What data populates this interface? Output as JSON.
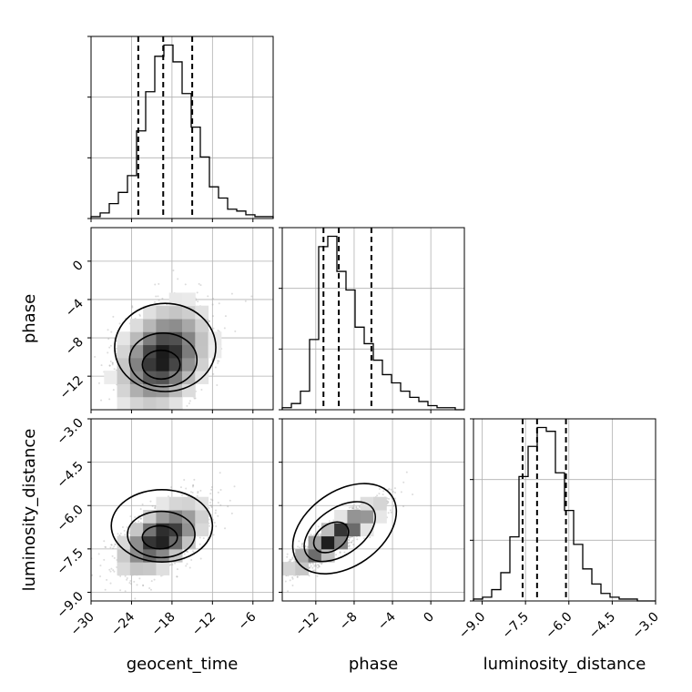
{
  "chart_data": {
    "type": "corner",
    "parameters": [
      "geocent_time",
      "phase",
      "luminosity_distance"
    ],
    "grid": true,
    "histogram_dashed_lines": {
      "geocent_time": [
        -23.0,
        -19.3,
        -15.0
      ],
      "phase": [
        -11.2,
        -9.6,
        -6.2
      ],
      "luminosity_distance": [
        -7.6,
        -7.1,
        -6.1
      ]
    },
    "axes": {
      "geocent_time": {
        "range": [
          -30,
          -3
        ],
        "ticks": [
          -30,
          -24,
          -18,
          -12,
          -6
        ],
        "tick_labels": [
          "−30",
          "−24",
          "−18",
          "−12",
          "−6"
        ]
      },
      "phase": {
        "range": [
          -15.5,
          3.5
        ],
        "ticks": [
          -12,
          -8,
          -4,
          0
        ],
        "tick_labels": [
          "−12",
          "−8",
          "−4",
          "0"
        ]
      },
      "luminosity_distance": {
        "range": [
          -9.3,
          -3.0
        ],
        "ticks": [
          -9.0,
          -7.5,
          -6.0,
          -4.5,
          -3.0
        ],
        "tick_labels": [
          "−9.0",
          "−7.5",
          "−6.0",
          "−4.5",
          "−3.0"
        ]
      }
    },
    "histograms": {
      "geocent_time": {
        "edges": [
          -30,
          -28.65,
          -27.3,
          -25.95,
          -24.6,
          -23.25,
          -21.9,
          -20.55,
          -19.2,
          -17.85,
          -16.5,
          -15.15,
          -13.8,
          -12.45,
          -11.1,
          -9.75,
          -8.4,
          -7.05,
          -5.7,
          -4.35,
          -3.0
        ],
        "counts": [
          0.01,
          0.03,
          0.08,
          0.14,
          0.23,
          0.47,
          0.68,
          0.87,
          0.93,
          0.84,
          0.67,
          0.49,
          0.33,
          0.17,
          0.11,
          0.05,
          0.04,
          0.02,
          0.01,
          0.01
        ]
      },
      "phase": {
        "edges": [
          -15.5,
          -14.55,
          -13.6,
          -12.65,
          -11.7,
          -10.75,
          -9.8,
          -8.85,
          -7.9,
          -6.95,
          -6.0,
          -5.05,
          -4.1,
          -3.15,
          -2.2,
          -1.25,
          -0.3,
          0.65,
          1.6,
          2.55,
          3.5
        ],
        "counts": [
          0.01,
          0.03,
          0.09,
          0.34,
          0.79,
          0.84,
          0.67,
          0.58,
          0.4,
          0.32,
          0.24,
          0.17,
          0.13,
          0.09,
          0.06,
          0.04,
          0.02,
          0.01,
          0.01,
          0.0
        ]
      },
      "luminosity_distance": {
        "edges": [
          -9.3,
          -8.985,
          -8.67,
          -8.355,
          -8.04,
          -7.725,
          -7.41,
          -7.095,
          -6.78,
          -6.465,
          -6.15,
          -5.835,
          -5.52,
          -5.205,
          -4.89,
          -4.575,
          -4.26,
          -3.945,
          -3.63,
          -3.315,
          -3.0
        ],
        "counts": [
          0.01,
          0.02,
          0.06,
          0.15,
          0.34,
          0.66,
          0.82,
          0.92,
          0.9,
          0.68,
          0.48,
          0.3,
          0.17,
          0.09,
          0.04,
          0.02,
          0.01,
          0.01,
          0.0,
          0.0
        ]
      }
    },
    "pairs": {
      "phase_vs_geocent_time": {
        "x": "geocent_time",
        "y": "phase",
        "center": [
          -19.3,
          -10.0
        ],
        "sigma": [
          3.5,
          2.8
        ],
        "correlation": 0.3,
        "contours": [
          {
            "center": [
              -19.0,
              -9.0
            ],
            "radii": [
              7.5,
              4.6
            ]
          },
          {
            "center": [
              -19.3,
              -10.3
            ],
            "radii": [
              5.0,
              2.8
            ]
          },
          {
            "center": [
              -19.6,
              -10.8
            ],
            "radii": [
              2.8,
              1.5
            ]
          }
        ]
      },
      "luminosity_distance_vs_geocent_time": {
        "x": "geocent_time",
        "y": "luminosity_distance",
        "center": [
          -19.5,
          -7.1
        ],
        "sigma": [
          3.3,
          0.65
        ],
        "correlation": 0.55,
        "contours": [
          {
            "center": [
              -19.5,
              -6.7
            ],
            "radii": [
              7.5,
              1.25
            ]
          },
          {
            "center": [
              -19.6,
              -7.0
            ],
            "radii": [
              5.0,
              0.8
            ]
          },
          {
            "center": [
              -19.8,
              -7.1
            ],
            "radii": [
              2.6,
              0.4
            ]
          }
        ]
      },
      "luminosity_distance_vs_phase": {
        "x": "phase",
        "y": "luminosity_distance",
        "center": [
          -10.0,
          -7.1
        ],
        "sigma": [
          2.6,
          0.65
        ],
        "correlation": 0.9,
        "contours": [
          {
            "center": [
              -9.0,
              -6.8
            ],
            "radii": [
              6.0,
              1.3
            ],
            "rotation_deg": 35
          },
          {
            "center": [
              -9.5,
              -6.9
            ],
            "radii": [
              4.2,
              0.8
            ],
            "rotation_deg": 35
          },
          {
            "center": [
              -10.4,
              -7.1
            ],
            "radii": [
              2.0,
              0.45
            ],
            "rotation_deg": 35
          }
        ]
      }
    }
  }
}
